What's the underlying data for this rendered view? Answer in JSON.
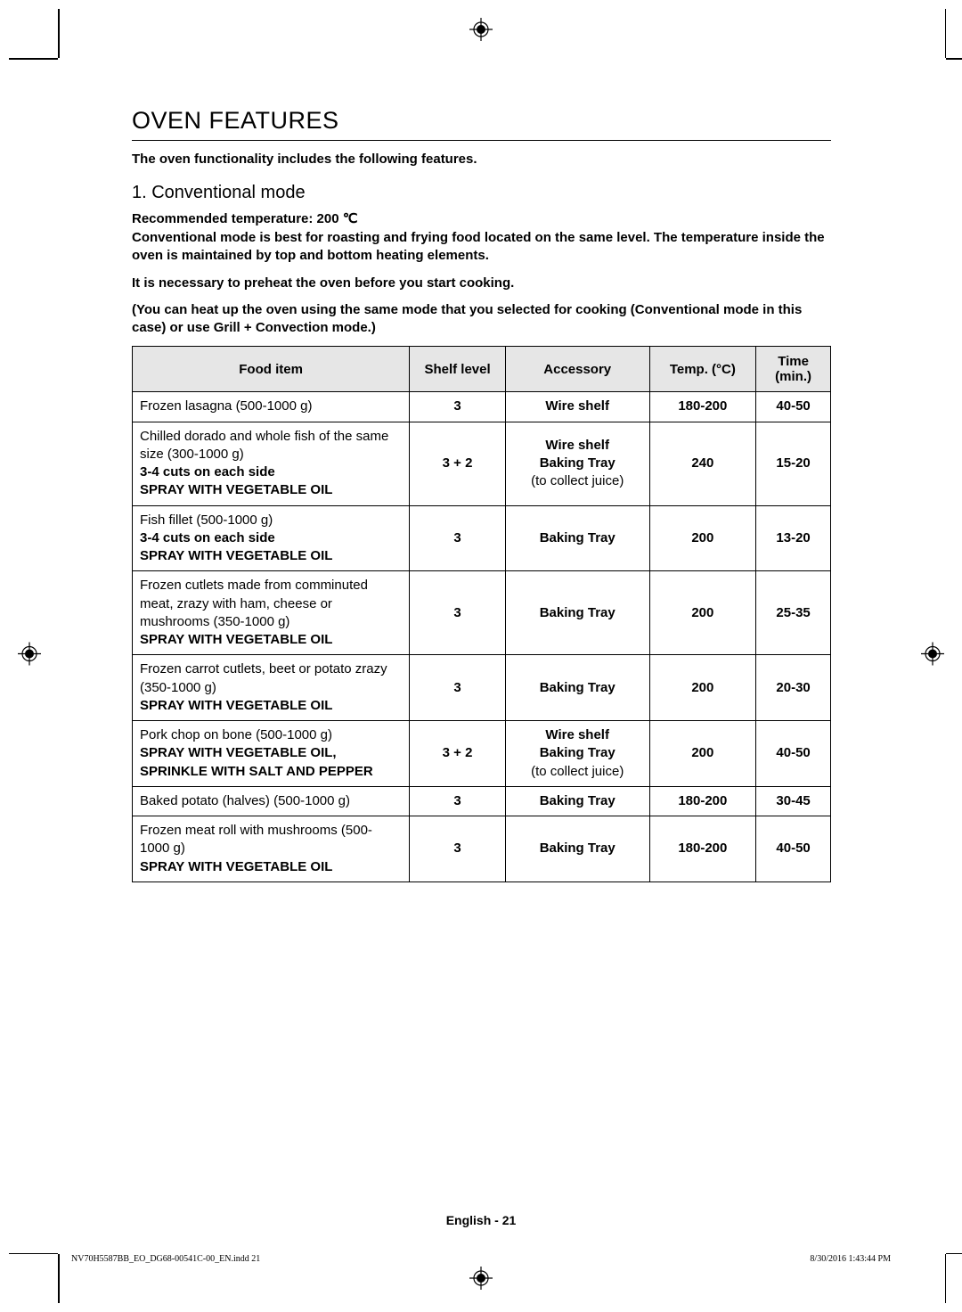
{
  "section_title": "OVEN FEATURES",
  "intro": "The oven functionality includes the following features.",
  "subsection": "1. Conventional mode",
  "rec_temp": "Recommended temperature: 200 ℃",
  "para1": "Conventional mode is best for roasting and frying food located on the same level. The temperature inside the oven is maintained by top and bottom heating elements.",
  "para2": "It is necessary to preheat the oven before you start cooking.",
  "para3": "(You can heat up the oven using the same mode that you selected for cooking (Conventional mode in this case) or use Grill + Convection mode.)",
  "headers": {
    "food": "Food item",
    "shelf": "Shelf level",
    "accessory": "Accessory",
    "temp": "Temp. (°C)",
    "time": "Time (min.)"
  },
  "rows": [
    {
      "food": "Frozen lasagna (500-1000 g)",
      "prep": "",
      "shelf": "3",
      "accessory": "Wire shelf",
      "temp": "180-200",
      "time": "40-50"
    },
    {
      "food": "Chilled dorado and whole fish of the same size (300-1000 g)",
      "prep": "3-4 cuts on each side\nSPRAY WITH VEGETABLE OIL",
      "shelf": "3 + 2",
      "accessory": "Wire shelf\nBaking Tray\n(to collect juice)",
      "temp": "240",
      "time": "15-20"
    },
    {
      "food": "Fish fillet (500-1000 g)",
      "prep": "3-4 cuts on each side\nSPRAY WITH VEGETABLE OIL",
      "shelf": "3",
      "accessory": "Baking Tray",
      "temp": "200",
      "time": "13-20"
    },
    {
      "food": "Frozen cutlets made from comminuted meat, zrazy with ham, cheese or mushrooms (350-1000 g)",
      "prep": "SPRAY WITH VEGETABLE OIL",
      "shelf": "3",
      "accessory": "Baking Tray",
      "temp": "200",
      "time": "25-35"
    },
    {
      "food": "Frozen carrot cutlets, beet or potato zrazy (350-1000 g)",
      "prep": "SPRAY WITH VEGETABLE OIL",
      "shelf": "3",
      "accessory": "Baking Tray",
      "temp": "200",
      "time": "20-30"
    },
    {
      "food": "Pork chop on bone (500-1000 g)",
      "prep": "SPRAY WITH VEGETABLE OIL, SPRINKLE WITH SALT AND PEPPER",
      "shelf": "3 + 2",
      "accessory": "Wire shelf\nBaking Tray\n(to collect juice)",
      "temp": "200",
      "time": "40-50"
    },
    {
      "food": "Baked potato (halves) (500-1000 g)",
      "prep": "",
      "shelf": "3",
      "accessory": "Baking Tray",
      "temp": "180-200",
      "time": "30-45"
    },
    {
      "food": "Frozen meat roll with mushrooms (500-1000 g)",
      "prep": "SPRAY WITH VEGETABLE OIL",
      "shelf": "3",
      "accessory": "Baking Tray",
      "temp": "180-200",
      "time": "40-50"
    }
  ],
  "page_num": "English - 21",
  "footer_left": "NV70H5587BB_EO_DG68-00541C-00_EN.indd   21",
  "footer_right": "8/30/2016   1:43:44 PM"
}
